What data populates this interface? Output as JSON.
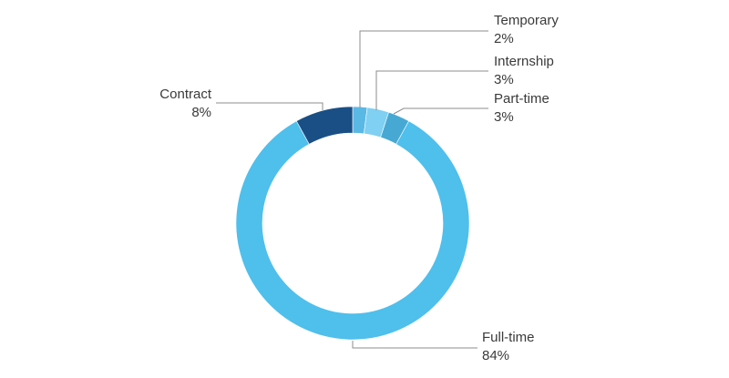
{
  "chart_data": {
    "type": "pie",
    "donut": true,
    "start": "top, clockwise",
    "slices": [
      {
        "label": "Temporary",
        "value": 2,
        "value_label": "2%",
        "color": "#5ab8e4"
      },
      {
        "label": "Internship",
        "value": 3,
        "value_label": "3%",
        "color": "#7fd0f2"
      },
      {
        "label": "Part-time",
        "value": 3,
        "value_label": "3%",
        "color": "#47a9d3"
      },
      {
        "label": "Full-time",
        "value": 84,
        "value_label": "84%",
        "color": "#4fbfec"
      },
      {
        "label": "Contract",
        "value": 8,
        "value_label": "8%",
        "color": "#1a4f85"
      }
    ],
    "legend": "none",
    "labels": "outside with leader lines"
  }
}
